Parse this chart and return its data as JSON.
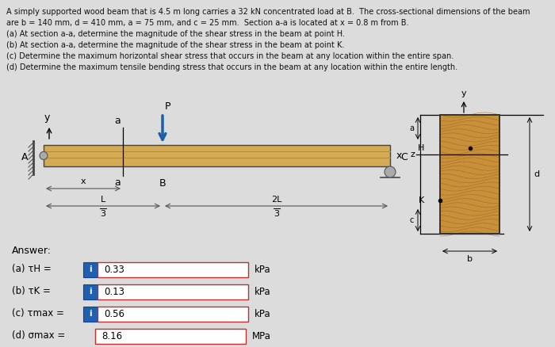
{
  "bg_color": "#dcdcdc",
  "text_color": "#111111",
  "title_lines": [
    "A simply supported wood beam that is 4.5 m long carries a 32 kN concentrated load at B.  The cross-sectional dimensions of the beam",
    "are b = 140 mm, d = 410 mm, a = 75 mm, and c = 25 mm.  Section a-a is located at x = 0.8 m from B.",
    "(a) At section a-a, determine the magnitude of the shear stress in the beam at point H.",
    "(b) At section a-a, determine the magnitude of the shear stress in the beam at point K.",
    "(c) Determine the maximum horizontal shear stress that occurs in the beam at any location within the entire span.",
    "(d) Determine the maximum tensile bending stress that occurs in the beam at any location within the entire length."
  ],
  "answer_label": "Answer:",
  "answers": [
    {
      "label": "(a) τH =",
      "icon": true,
      "value": "0.33",
      "unit": "kPa"
    },
    {
      "label": "(b) τK =",
      "icon": true,
      "value": "0.13",
      "unit": "kPa"
    },
    {
      "label": "(c) τmax =",
      "icon": true,
      "value": "0.56",
      "unit": "kPa"
    },
    {
      "label": "(d) σmax =",
      "icon": false,
      "value": "8.16",
      "unit": "MPa"
    }
  ],
  "beam_color": "#d4aa55",
  "beam_line_color": "#b8902a",
  "wood_fill": "#c8903a",
  "support_color": "#888888",
  "arrow_color": "#1a5fa8"
}
